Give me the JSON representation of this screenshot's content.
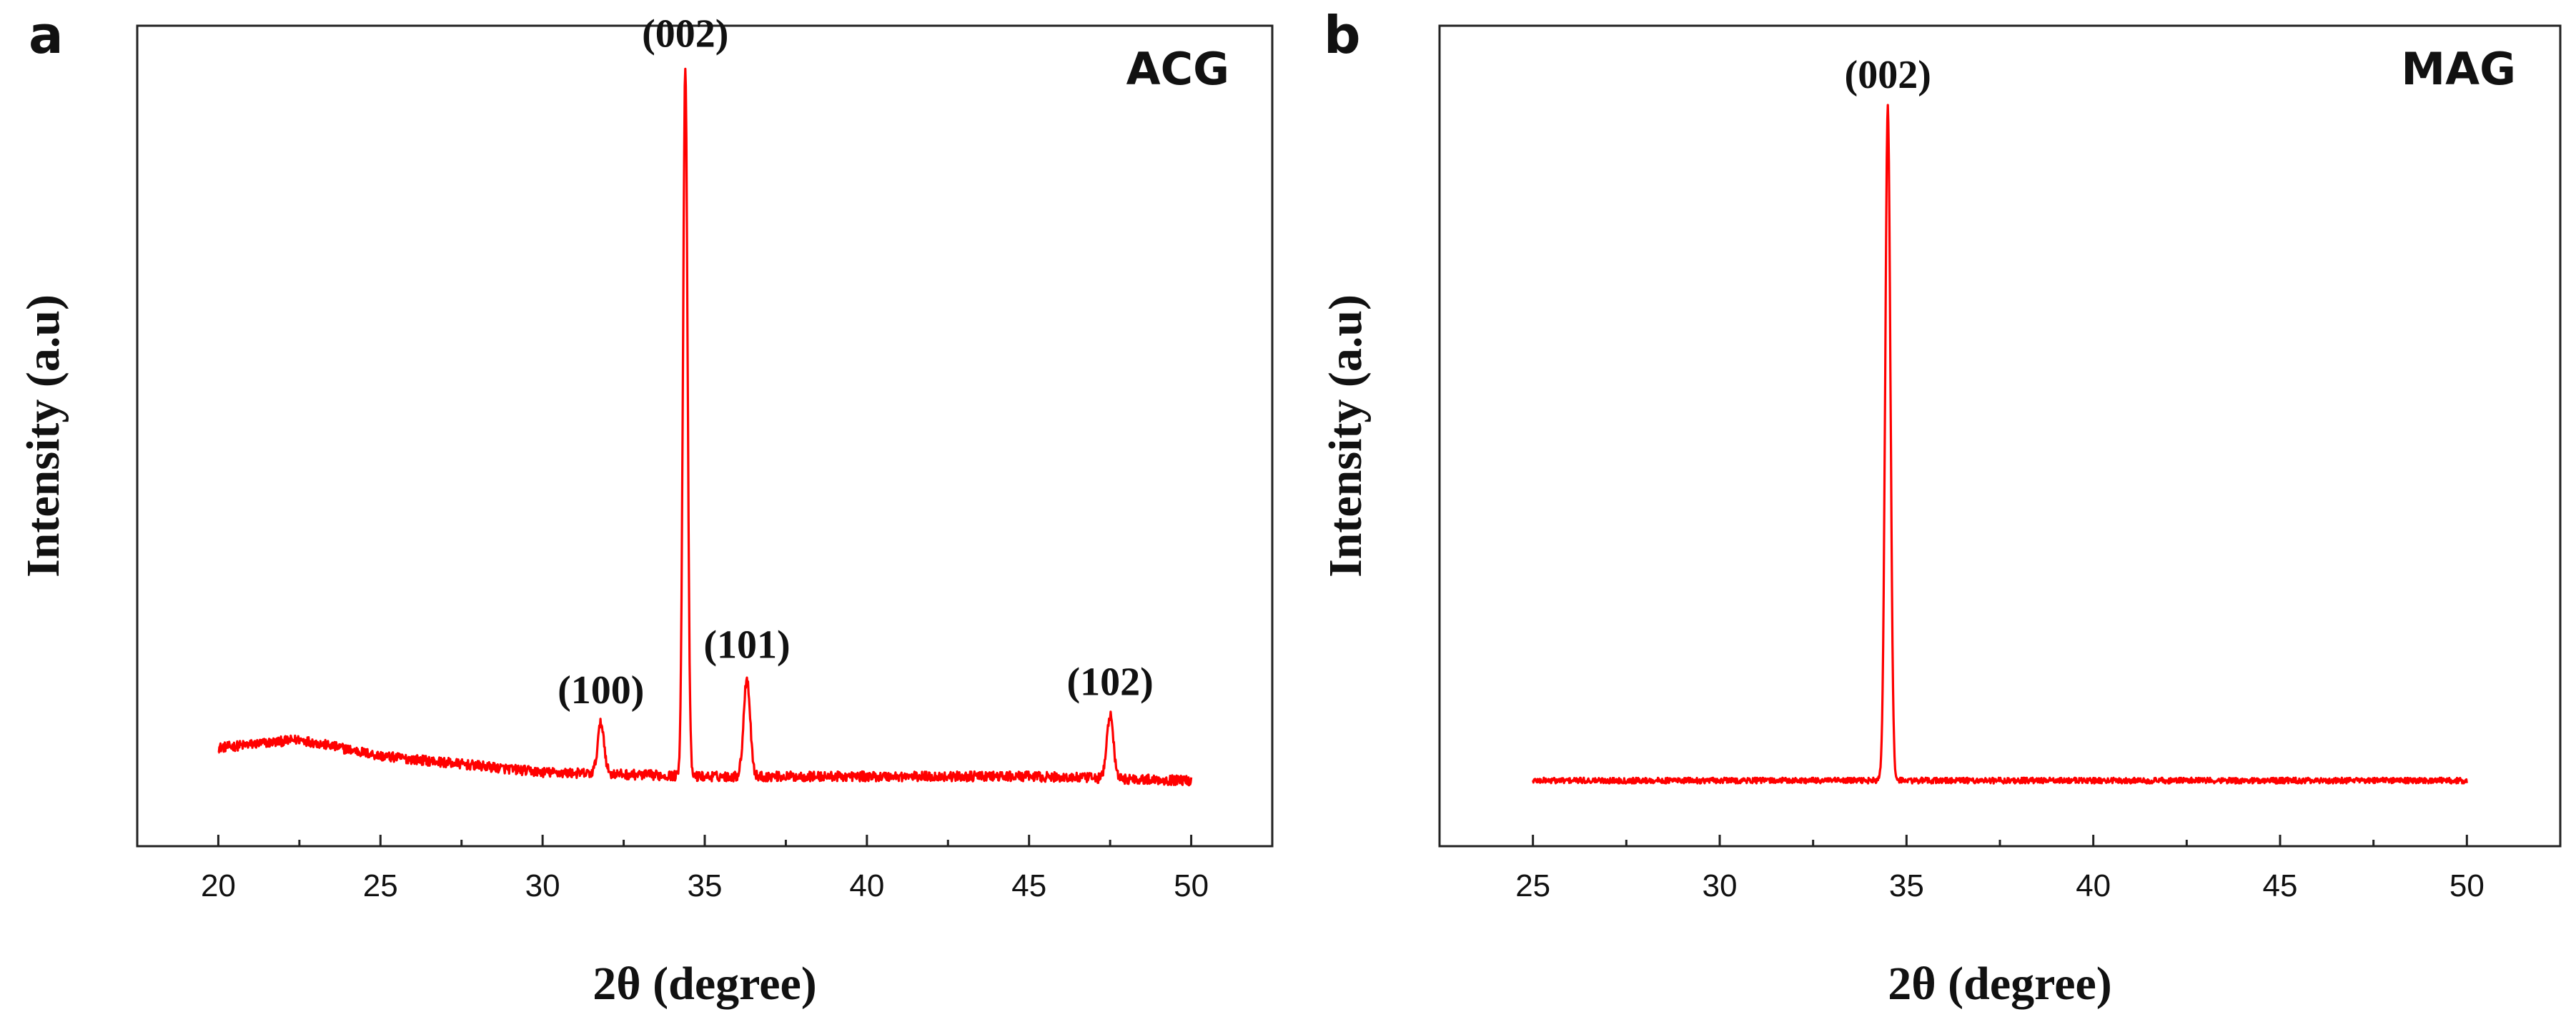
{
  "chart_data": [
    {
      "type": "line",
      "panel_label": "a",
      "title": "ACG",
      "xlabel": "2θ (degree)",
      "ylabel": "Intensity (a.u)",
      "xlim": [
        17.5,
        52.5
      ],
      "ylim": [
        0,
        1.0
      ],
      "x_ticks": [
        20,
        25,
        30,
        35,
        40,
        45,
        50
      ],
      "x_tick_labels": [
        "20",
        "25",
        "30",
        "35",
        "40",
        "45",
        "50"
      ],
      "x_range": [
        20,
        50
      ],
      "background": [
        [
          20,
          0.12
        ],
        [
          22.5,
          0.13
        ],
        [
          25,
          0.11
        ],
        [
          30,
          0.09
        ],
        [
          35,
          0.085
        ],
        [
          40,
          0.085
        ],
        [
          45,
          0.085
        ],
        [
          50,
          0.08
        ]
      ],
      "peaks": [
        {
          "x": 31.8,
          "y": 0.15,
          "label": "(100)"
        },
        {
          "x": 34.4,
          "y": 0.95,
          "label": "(002)"
        },
        {
          "x": 36.3,
          "y": 0.205,
          "label": "(101)"
        },
        {
          "x": 47.5,
          "y": 0.16,
          "label": "(102)"
        }
      ],
      "legend": "top-right"
    },
    {
      "type": "line",
      "panel_label": "b",
      "title": "MAG",
      "xlabel": "2θ (degree)",
      "ylabel": "Intensity (a.u)",
      "xlim": [
        22.5,
        52.5
      ],
      "ylim": [
        0,
        1.0
      ],
      "x_ticks": [
        25,
        30,
        35,
        40,
        45,
        50
      ],
      "x_tick_labels": [
        "25",
        "30",
        "35",
        "40",
        "45",
        "50"
      ],
      "x_range": [
        25,
        50
      ],
      "background": [
        [
          25,
          0.08
        ],
        [
          50,
          0.08
        ]
      ],
      "peaks": [
        {
          "x": 34.5,
          "y": 0.9,
          "label": "(002)"
        }
      ],
      "legend": "top-right"
    }
  ],
  "colors": {
    "trace": "#ff0000",
    "axes": "#222222"
  }
}
